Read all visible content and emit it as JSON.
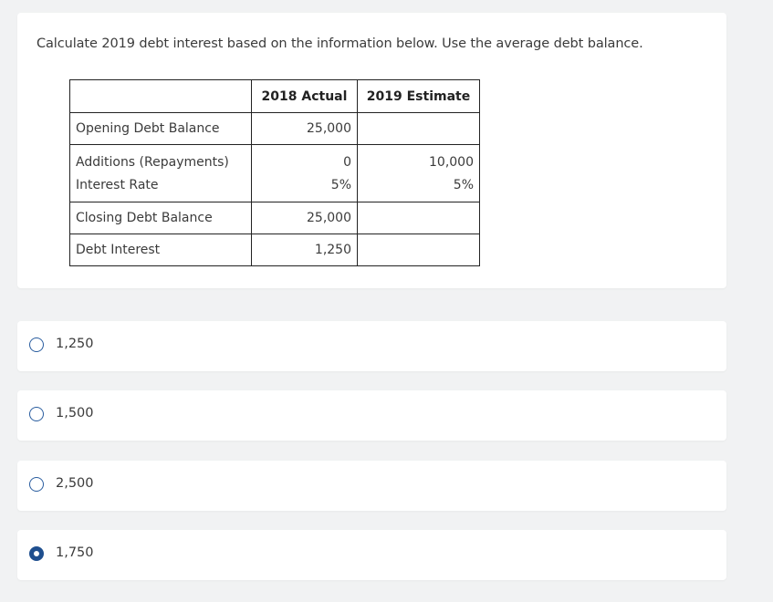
{
  "question": {
    "text": "Calculate 2019 debt interest based on the information below. Use the average debt balance."
  },
  "table": {
    "headers": [
      "",
      "2018 Actual",
      "2019 Estimate"
    ],
    "rows": [
      {
        "label": "Opening Debt Balance",
        "actual": "25,000",
        "estimate": ""
      },
      {
        "label": "Additions (Repayments)",
        "actual": "0",
        "estimate": "10,000"
      },
      {
        "label": "Interest Rate",
        "actual": "5%",
        "estimate": "5%"
      },
      {
        "label": "Closing Debt Balance",
        "actual": "25,000",
        "estimate": ""
      },
      {
        "label": "Debt Interest",
        "actual": "1,250",
        "estimate": ""
      }
    ]
  },
  "options": [
    {
      "label": "1,250",
      "selected": false
    },
    {
      "label": "1,500",
      "selected": false
    },
    {
      "label": "2,500",
      "selected": false
    },
    {
      "label": "1,750",
      "selected": true
    }
  ],
  "colors": {
    "background": "#f1f2f3",
    "card": "#ffffff",
    "radio_accent": "#1f4f8f"
  }
}
